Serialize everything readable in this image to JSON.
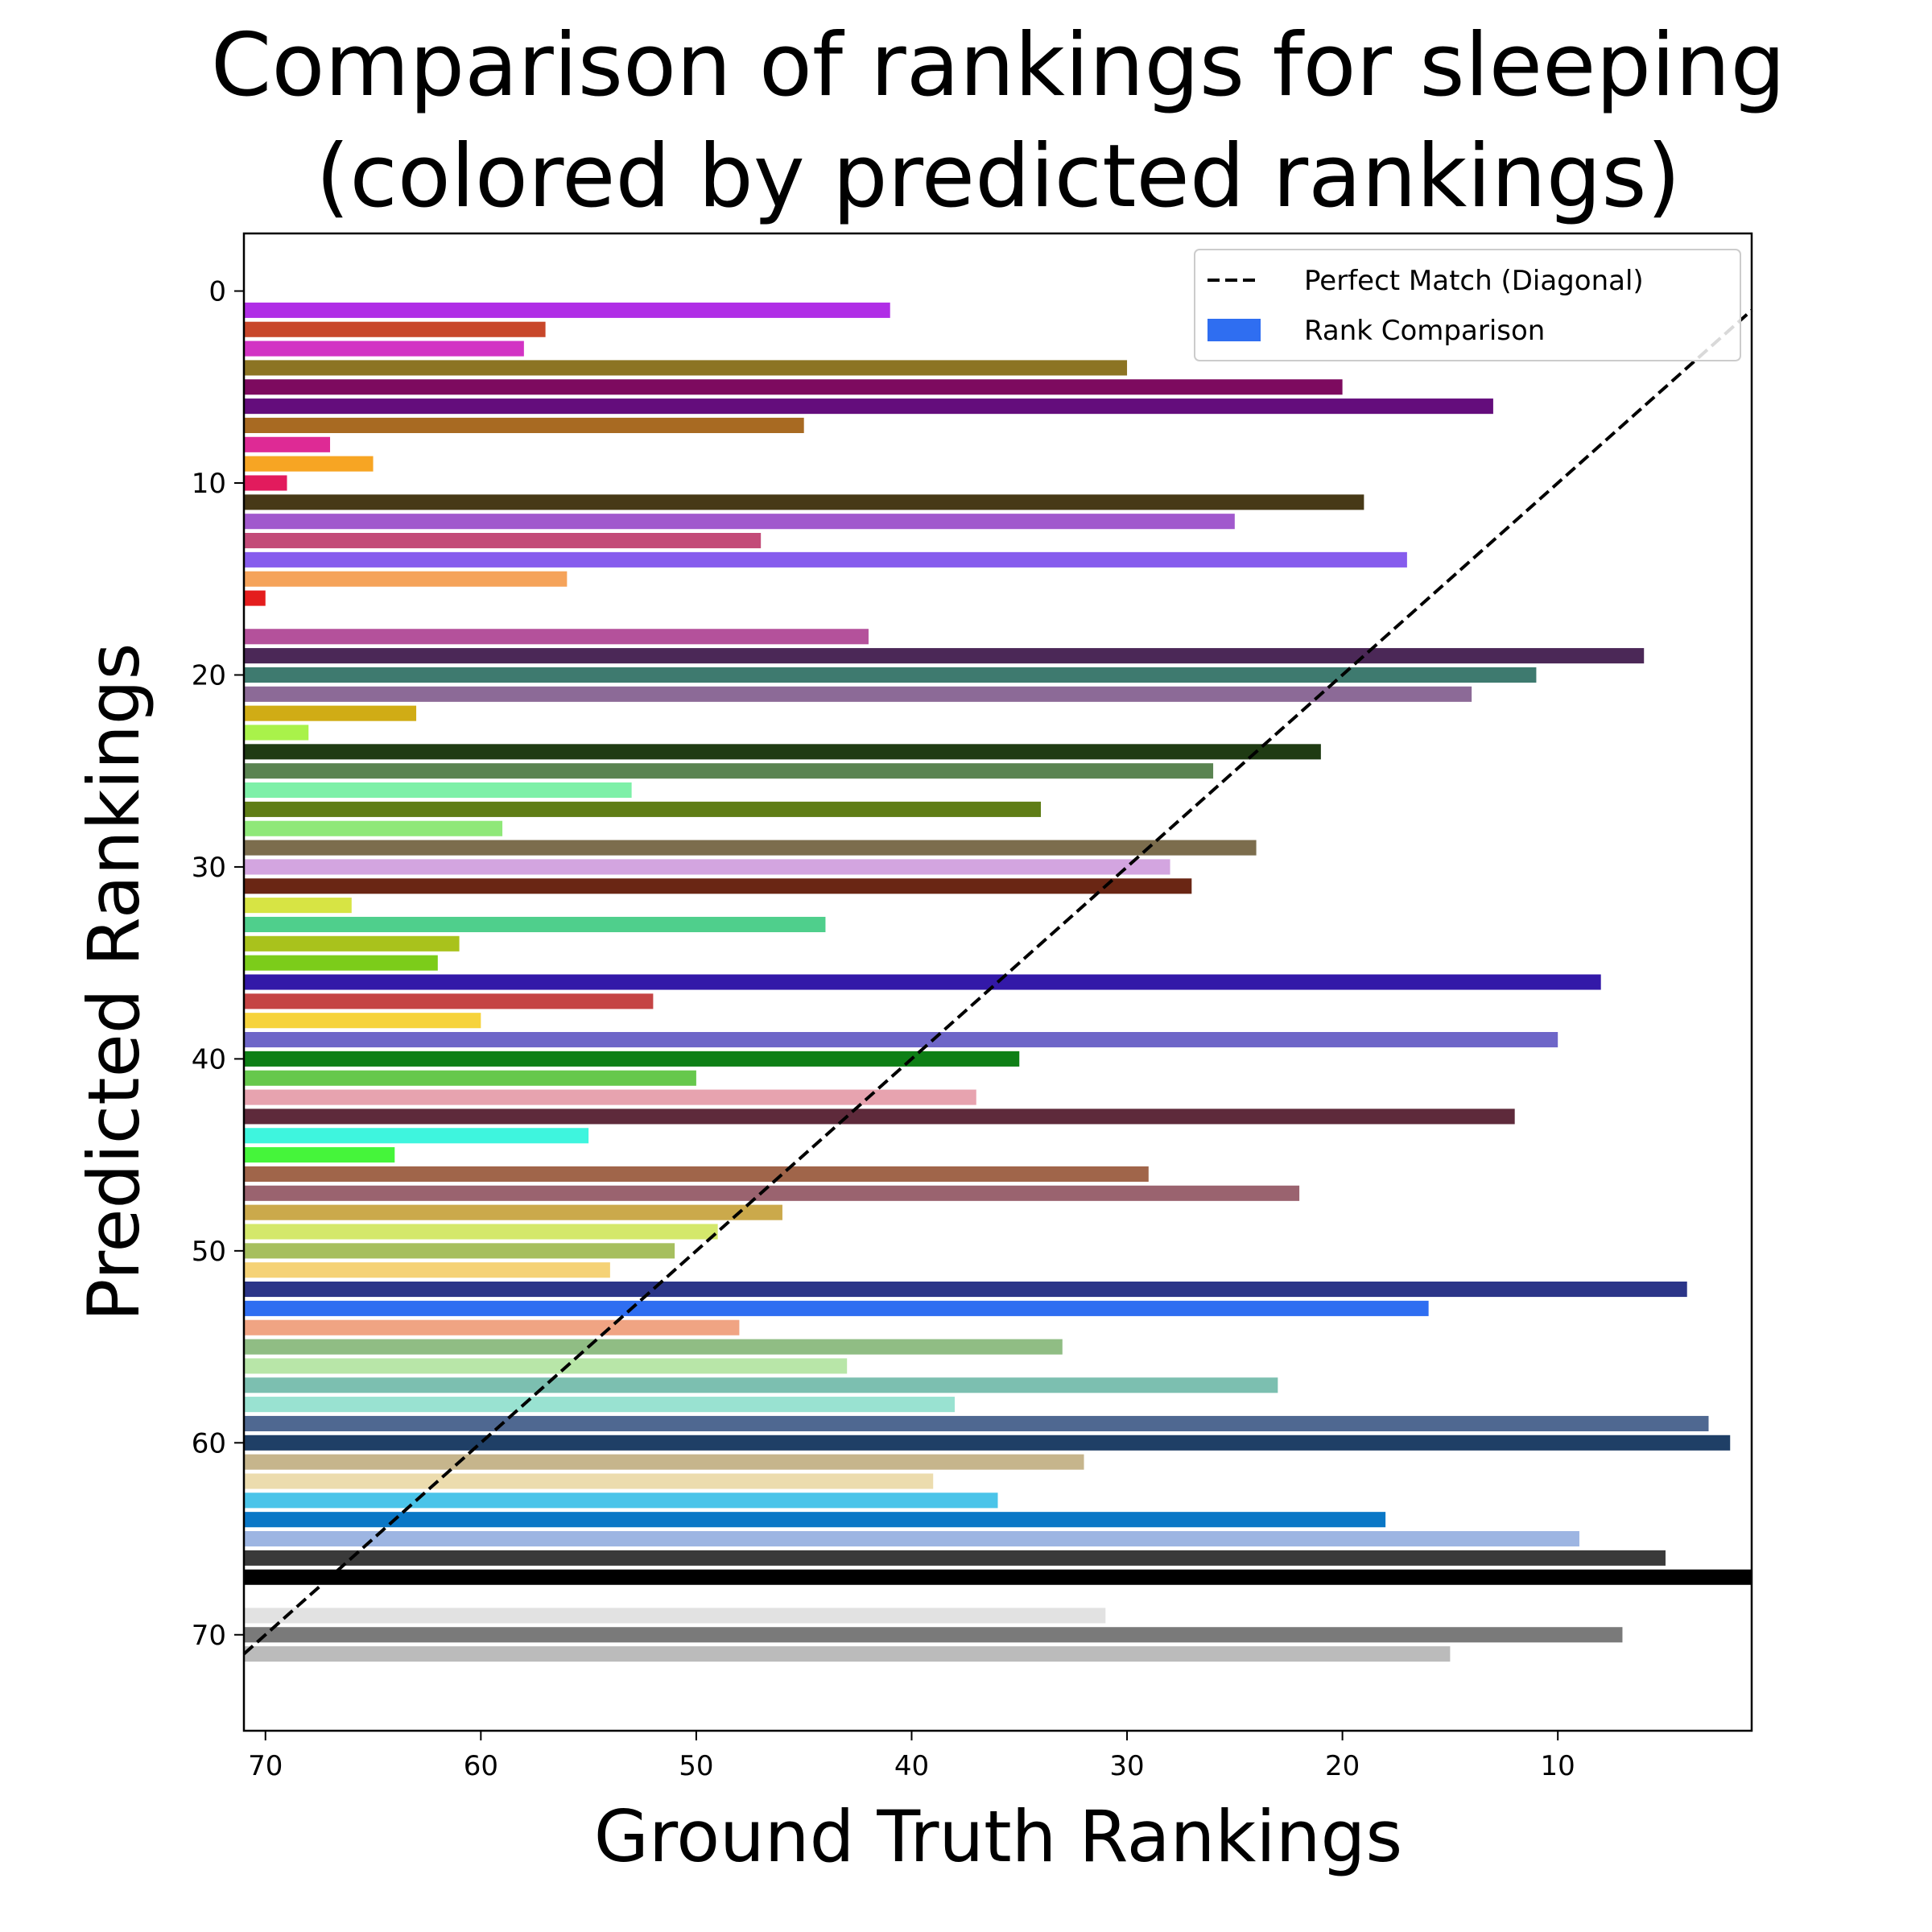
{
  "chart_data": {
    "type": "bar",
    "orientation": "horizontal",
    "title_lines": [
      "Comparison of rankings for sleeping",
      "(colored by predicted rankings)"
    ],
    "xlabel": "Ground Truth Rankings",
    "ylabel": "Predicted Rankings",
    "xlim": [
      71,
      1
    ],
    "ylim": [
      75,
      -3
    ],
    "x_inverted": true,
    "y_inverted": true,
    "xticks": [
      70,
      60,
      50,
      40,
      30,
      20,
      10
    ],
    "yticks": [
      0,
      10,
      20,
      30,
      40,
      50,
      60,
      70
    ],
    "grid": false,
    "legend": {
      "placement": "top-right",
      "entries": [
        {
          "label": "Perfect Match (Diagonal)",
          "kind": "dashed-line",
          "color": "#000000"
        },
        {
          "label": "Rank Comparison",
          "kind": "patch",
          "color": "#2f6ef1"
        }
      ]
    },
    "diagonal": {
      "from": [
        71,
        71
      ],
      "to": [
        1,
        1
      ],
      "style": "dashed",
      "color": "#000000"
    },
    "bars": [
      {
        "predicted": 1,
        "ground_truth": 41,
        "color": "#b02ee6"
      },
      {
        "predicted": 2,
        "ground_truth": 57,
        "color": "#c8472a"
      },
      {
        "predicted": 3,
        "ground_truth": 58,
        "color": "#d233c4"
      },
      {
        "predicted": 4,
        "ground_truth": 30,
        "color": "#8c7423"
      },
      {
        "predicted": 5,
        "ground_truth": 20,
        "color": "#7d0a5f"
      },
      {
        "predicted": 6,
        "ground_truth": 13,
        "color": "#640d7c"
      },
      {
        "predicted": 7,
        "ground_truth": 45,
        "color": "#a86a22"
      },
      {
        "predicted": 8,
        "ground_truth": 67,
        "color": "#de2a95"
      },
      {
        "predicted": 9,
        "ground_truth": 65,
        "color": "#f7a523"
      },
      {
        "predicted": 10,
        "ground_truth": 69,
        "color": "#e21b5d"
      },
      {
        "predicted": 11,
        "ground_truth": 19,
        "color": "#473917"
      },
      {
        "predicted": 12,
        "ground_truth": 25,
        "color": "#a159cd"
      },
      {
        "predicted": 13,
        "ground_truth": 47,
        "color": "#c34b78"
      },
      {
        "predicted": 14,
        "ground_truth": 17,
        "color": "#865ced"
      },
      {
        "predicted": 15,
        "ground_truth": 56,
        "color": "#f5a35a"
      },
      {
        "predicted": 16,
        "ground_truth": 70,
        "color": "#e41d1d"
      },
      {
        "predicted": 18,
        "ground_truth": 42,
        "color": "#b4519b"
      },
      {
        "predicted": 19,
        "ground_truth": 6,
        "color": "#4b2857"
      },
      {
        "predicted": 20,
        "ground_truth": 11,
        "color": "#3e7a6f"
      },
      {
        "predicted": 21,
        "ground_truth": 14,
        "color": "#8c6a97"
      },
      {
        "predicted": 22,
        "ground_truth": 63,
        "color": "#d0ac15"
      },
      {
        "predicted": 23,
        "ground_truth": 68,
        "color": "#a9f24a"
      },
      {
        "predicted": 24,
        "ground_truth": 21,
        "color": "#1f3b13"
      },
      {
        "predicted": 25,
        "ground_truth": 26,
        "color": "#5a8451"
      },
      {
        "predicted": 26,
        "ground_truth": 53,
        "color": "#7ef0a8"
      },
      {
        "predicted": 27,
        "ground_truth": 34,
        "color": "#5f7d16"
      },
      {
        "predicted": 28,
        "ground_truth": 59,
        "color": "#8fe879"
      },
      {
        "predicted": 29,
        "ground_truth": 24,
        "color": "#7c6d4d"
      },
      {
        "predicted": 30,
        "ground_truth": 28,
        "color": "#d3a5e0"
      },
      {
        "predicted": 31,
        "ground_truth": 27,
        "color": "#6a2614"
      },
      {
        "predicted": 32,
        "ground_truth": 66,
        "color": "#d7e444"
      },
      {
        "predicted": 33,
        "ground_truth": 44,
        "color": "#4fcf8c"
      },
      {
        "predicted": 34,
        "ground_truth": 61,
        "color": "#a9c21c"
      },
      {
        "predicted": 35,
        "ground_truth": 62,
        "color": "#7ccc1a"
      },
      {
        "predicted": 36,
        "ground_truth": 8,
        "color": "#3319a8"
      },
      {
        "predicted": 37,
        "ground_truth": 52,
        "color": "#c54444"
      },
      {
        "predicted": 38,
        "ground_truth": 60,
        "color": "#f6d33c"
      },
      {
        "predicted": 39,
        "ground_truth": 10,
        "color": "#6e66c8"
      },
      {
        "predicted": 40,
        "ground_truth": 35,
        "color": "#0e7f16"
      },
      {
        "predicted": 41,
        "ground_truth": 50,
        "color": "#66c84c"
      },
      {
        "predicted": 42,
        "ground_truth": 37,
        "color": "#e7a3af"
      },
      {
        "predicted": 43,
        "ground_truth": 12,
        "color": "#5e2a3b"
      },
      {
        "predicted": 44,
        "ground_truth": 55,
        "color": "#3ef5de"
      },
      {
        "predicted": 45,
        "ground_truth": 64,
        "color": "#45f53a"
      },
      {
        "predicted": 46,
        "ground_truth": 29,
        "color": "#a0654a"
      },
      {
        "predicted": 47,
        "ground_truth": 22,
        "color": "#9a636f"
      },
      {
        "predicted": 48,
        "ground_truth": 46,
        "color": "#cba94b"
      },
      {
        "predicted": 49,
        "ground_truth": 49,
        "color": "#d4e86b"
      },
      {
        "predicted": 50,
        "ground_truth": 51,
        "color": "#a6bf5e"
      },
      {
        "predicted": 51,
        "ground_truth": 54,
        "color": "#f5d276"
      },
      {
        "predicted": 52,
        "ground_truth": 4,
        "color": "#2b3588"
      },
      {
        "predicted": 53,
        "ground_truth": 16,
        "color": "#2f6ef1"
      },
      {
        "predicted": 54,
        "ground_truth": 48,
        "color": "#f0a483"
      },
      {
        "predicted": 55,
        "ground_truth": 33,
        "color": "#90bd84"
      },
      {
        "predicted": 56,
        "ground_truth": 43,
        "color": "#b8e6a8"
      },
      {
        "predicted": 57,
        "ground_truth": 23,
        "color": "#7cbfb0"
      },
      {
        "predicted": 58,
        "ground_truth": 38,
        "color": "#99e2d1"
      },
      {
        "predicted": 59,
        "ground_truth": 3,
        "color": "#4f6891"
      },
      {
        "predicted": 60,
        "ground_truth": 2,
        "color": "#1f3f66"
      },
      {
        "predicted": 61,
        "ground_truth": 32,
        "color": "#c6b58c"
      },
      {
        "predicted": 62,
        "ground_truth": 39,
        "color": "#ecdcae"
      },
      {
        "predicted": 63,
        "ground_truth": 36,
        "color": "#4bc4e9"
      },
      {
        "predicted": 64,
        "ground_truth": 18,
        "color": "#0a77c6"
      },
      {
        "predicted": 65,
        "ground_truth": 9,
        "color": "#9db5e2"
      },
      {
        "predicted": 66,
        "ground_truth": 5,
        "color": "#3a3a3a"
      },
      {
        "predicted": 67,
        "ground_truth": 1,
        "color": "#000000"
      },
      {
        "predicted": 69,
        "ground_truth": 31,
        "color": "#e2e2e2"
      },
      {
        "predicted": 70,
        "ground_truth": 7,
        "color": "#7a7a7a"
      },
      {
        "predicted": 71,
        "ground_truth": 15,
        "color": "#bbbbbb"
      }
    ]
  }
}
